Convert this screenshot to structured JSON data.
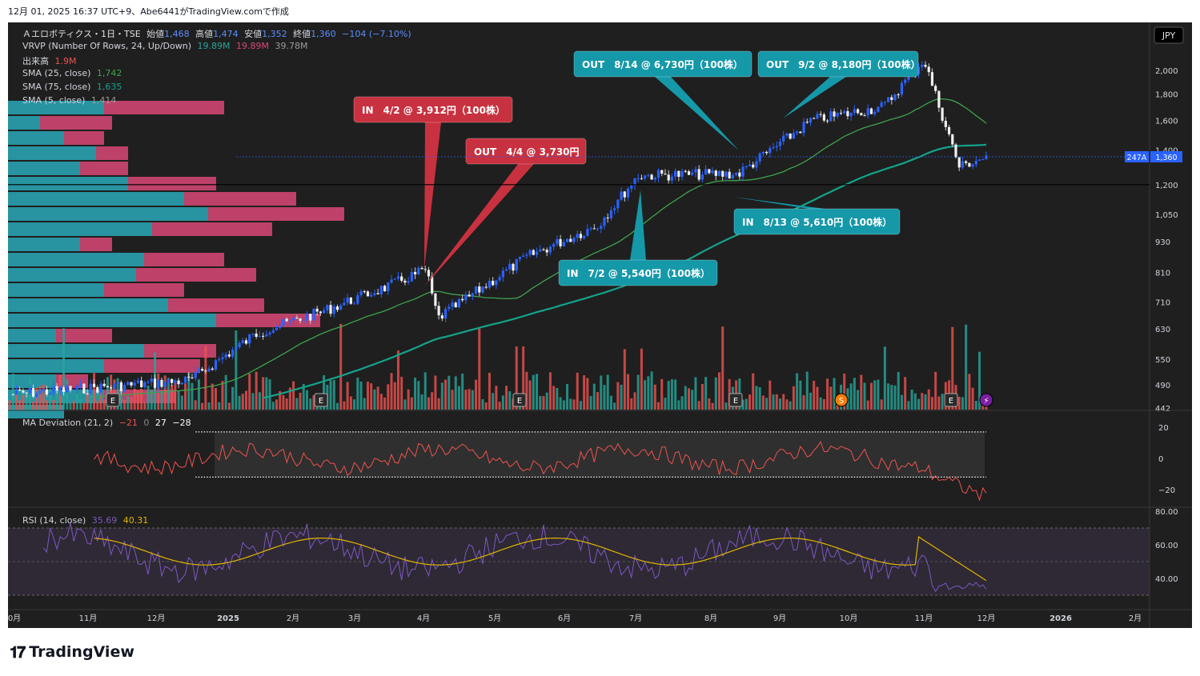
{
  "header": {
    "caption": "12月 01, 2025 16:37 UTC+9、Abe6441がTradingView.comで作成"
  },
  "main_legend": {
    "symbol": "Ａエロボティクス・1日・TSE",
    "open_label": "始値",
    "open": "1,468",
    "high_label": "高値",
    "high": "1,474",
    "low_label": "安値",
    "low": "1,352",
    "close_label": "終値",
    "close": "1,360",
    "change": "−104 (−7.10%)"
  },
  "indicators": {
    "vrvp": {
      "label": "VRVP (Number Of Rows, 24, Up/Down)",
      "up": "19.89M",
      "down": "19.89M",
      "total": "39.78M"
    },
    "volume": {
      "label": "出来高",
      "value": "1.9M"
    },
    "sma25": {
      "label": "SMA (25, close)",
      "value": "1,742"
    },
    "sma75": {
      "label": "SMA (75, close)",
      "value": "1,635"
    },
    "sma5": {
      "label": "SMA (5, close)",
      "value": "1,414"
    }
  },
  "currency": "JPY",
  "price_tags": {
    "volume_tag": "247A",
    "last_price": "1,360"
  },
  "chart_data": [
    {
      "type": "candlestick",
      "panel": "price",
      "y_axis": {
        "scale": "log",
        "ticks": [
          "2,000",
          "1,800",
          "1,600",
          "1,400",
          "1,200",
          "1,050",
          "930",
          "810",
          "710",
          "630",
          "550",
          "490",
          "442"
        ],
        "tick_values": [
          2000,
          1800,
          1600,
          1400,
          1200,
          1050,
          930,
          810,
          710,
          630,
          550,
          490,
          442
        ]
      },
      "x_axis": {
        "ticks": [
          "0月",
          "11月",
          "12月",
          "2025",
          "2月",
          "3月",
          "4月",
          "5月",
          "6月",
          "7月",
          "8月",
          "9月",
          "10月",
          "11月",
          "12月",
          "2026",
          "2月"
        ]
      },
      "horizontal_line": 1200,
      "sample_closes": [
        {
          "x": "2024-10",
          "close": 470
        },
        {
          "x": "2024-12",
          "close": 500
        },
        {
          "x": "2025-01",
          "close": 620
        },
        {
          "x": "2025-02",
          "close": 680
        },
        {
          "x": "2025-03",
          "close": 760
        },
        {
          "x": "2025-04-02",
          "close": 820
        },
        {
          "x": "2025-04-07",
          "close": 660
        },
        {
          "x": "2025-05",
          "close": 870
        },
        {
          "x": "2025-06",
          "close": 1000
        },
        {
          "x": "2025-07-02",
          "close": 1250
        },
        {
          "x": "2025-08-13",
          "close": 1260
        },
        {
          "x": "2025-09",
          "close": 1600
        },
        {
          "x": "2025-10",
          "close": 1700
        },
        {
          "x": "2025-11-01",
          "close": 2100
        },
        {
          "x": "2025-11-18",
          "close": 1300
        },
        {
          "x": "2025-12-01",
          "close": 1360
        }
      ],
      "series": [
        {
          "name": "SMA (25, close)",
          "last": 1742,
          "color": "#3fa34d"
        },
        {
          "name": "SMA (75, close)",
          "last": 1635,
          "color": "#14a38b"
        },
        {
          "name": "SMA (5, close)",
          "last": 1414
        }
      ],
      "event_markers": [
        "E",
        "E",
        "E",
        "E",
        "S",
        "E",
        "⚡"
      ],
      "annotations": [
        {
          "id": "in1",
          "text": "IN　4/2 @ 3,912円（100株）",
          "kind": "IN",
          "color": "#c8313f"
        },
        {
          "id": "out1",
          "text": "OUT　4/4 @ 3,730円",
          "kind": "OUT",
          "color": "#c8313f"
        },
        {
          "id": "out2",
          "text": "OUT　8/14 @ 6,730円（100株）",
          "kind": "OUT",
          "color": "#1598a8"
        },
        {
          "id": "out3",
          "text": "OUT　9/2 @ 8,180円（100株）",
          "kind": "OUT",
          "color": "#1598a8"
        },
        {
          "id": "in2",
          "text": "IN　8/13 @ 5,610円（100株）",
          "kind": "IN",
          "color": "#1598a8"
        },
        {
          "id": "in3",
          "text": "IN　7/2 @ 5,540円（100株）",
          "kind": "IN",
          "color": "#1598a8"
        }
      ]
    },
    {
      "type": "line",
      "panel": "ma_deviation",
      "label": "MA Deviation (21, 2)",
      "values_shown": [
        "−21",
        "0",
        "27",
        "−28"
      ],
      "y_axis": {
        "ticks": [
          "20",
          "0",
          "−20"
        ],
        "tick_values": [
          20,
          0,
          -20
        ]
      }
    },
    {
      "type": "line",
      "panel": "rsi",
      "label": "RSI (14, close)",
      "values_shown": [
        "35.69",
        "40.31"
      ],
      "y_axis": {
        "ticks": [
          "80.00",
          "60.00",
          "40.00"
        ],
        "tick_values": [
          80,
          60,
          40
        ]
      },
      "series": [
        {
          "name": "RSI",
          "last": 35.69,
          "color": "#7e57c2"
        },
        {
          "name": "RSI MA",
          "last": 40.31,
          "color": "#e0b400"
        }
      ]
    }
  ],
  "colors": {
    "up": "#2962ff",
    "down": "#e8e8e8",
    "vol_up": "#26a69a",
    "vol_down": "#ef5350",
    "vp_up": "#2aa8b8",
    "vp_down": "#d94876",
    "bg": "#1f1f1f"
  },
  "footer": {
    "brand": "TradingView"
  }
}
